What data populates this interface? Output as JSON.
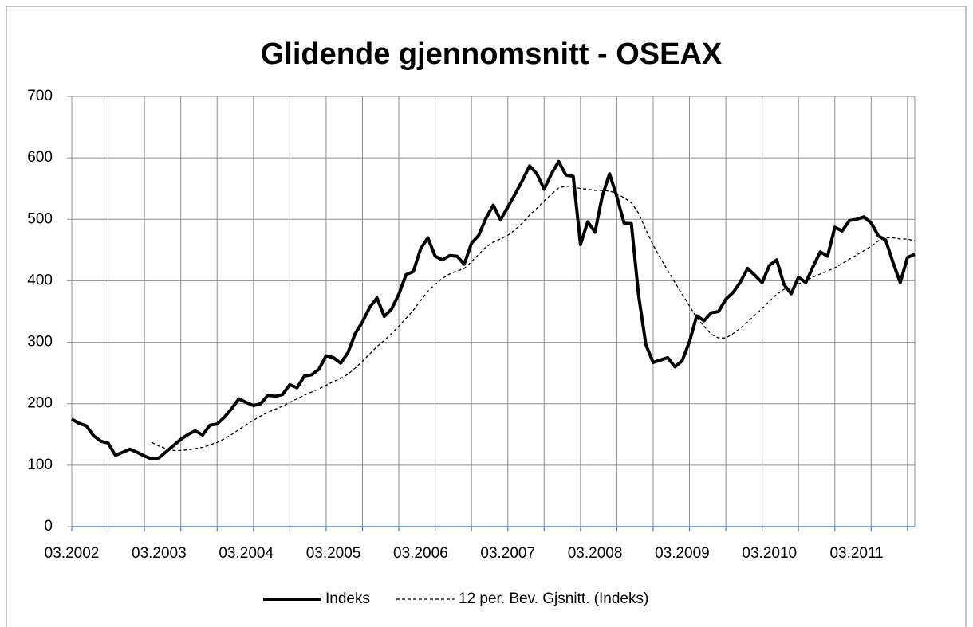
{
  "chart_data": {
    "type": "line",
    "title": "Glidende gjennomsnitt - OSEAX",
    "categories": [
      "03.2002",
      null,
      null,
      null,
      null,
      null,
      null,
      null,
      null,
      null,
      null,
      null,
      "03.2003",
      null,
      null,
      null,
      null,
      null,
      null,
      null,
      null,
      null,
      null,
      null,
      "03.2004",
      null,
      null,
      null,
      null,
      null,
      null,
      null,
      null,
      null,
      null,
      null,
      "03.2005",
      null,
      null,
      null,
      null,
      null,
      null,
      null,
      null,
      null,
      null,
      null,
      "03.2006",
      null,
      null,
      null,
      null,
      null,
      null,
      null,
      null,
      null,
      null,
      null,
      "03.2007",
      null,
      null,
      null,
      null,
      null,
      null,
      null,
      null,
      null,
      null,
      null,
      "03.2008",
      null,
      null,
      null,
      null,
      null,
      null,
      null,
      null,
      null,
      null,
      null,
      "03.2009",
      null,
      null,
      null,
      null,
      null,
      null,
      null,
      null,
      null,
      null,
      null,
      "03.2010",
      null,
      null,
      null,
      null,
      null,
      null,
      null,
      null,
      null,
      null,
      null,
      "03.2011",
      null,
      null,
      null,
      null,
      null,
      null,
      null,
      null
    ],
    "series": [
      {
        "name": "Indeks",
        "color": "#000000",
        "style": "solid",
        "values": [
          175,
          168,
          164,
          148,
          139,
          136,
          116,
          121,
          126,
          121,
          115,
          110,
          112,
          122,
          132,
          142,
          150,
          156,
          149,
          165,
          167,
          178,
          192,
          208,
          202,
          197,
          200,
          214,
          212,
          215,
          231,
          226,
          245,
          247,
          256,
          278,
          275,
          266,
          283,
          314,
          333,
          357,
          372,
          342,
          354,
          378,
          410,
          415,
          452,
          470,
          440,
          434,
          441,
          440,
          427,
          461,
          474,
          502,
          523,
          499,
          520,
          541,
          563,
          587,
          574,
          549,
          574,
          594,
          572,
          570,
          459,
          496,
          479,
          538,
          574,
          537,
          494,
          493,
          376,
          296,
          267,
          271,
          275,
          260,
          270,
          301,
          343,
          335,
          348,
          350,
          370,
          381,
          398,
          420,
          409,
          397,
          425,
          434,
          394,
          379,
          406,
          397,
          423,
          447,
          440,
          487,
          481,
          498,
          500,
          504,
          494,
          473,
          466,
          430,
          397,
          438,
          443
        ]
      },
      {
        "name": "12 per. Bev. Gjsnitt. (Indeks)",
        "color": "#000000",
        "style": "dashed",
        "values": [
          null,
          null,
          null,
          null,
          null,
          null,
          null,
          null,
          null,
          null,
          null,
          137,
          131,
          127,
          124,
          124,
          125,
          127,
          129,
          133,
          137,
          143,
          150,
          158,
          166,
          173,
          180,
          186,
          191,
          196,
          202,
          208,
          214,
          219,
          224,
          230,
          236,
          241,
          248,
          258,
          269,
          281,
          293,
          303,
          314,
          326,
          339,
          352,
          368,
          383,
          394,
          404,
          411,
          416,
          420,
          431,
          443,
          455,
          463,
          468,
          474,
          483,
          494,
          507,
          518,
          530,
          541,
          551,
          554,
          553,
          550,
          549,
          547,
          547,
          546,
          542,
          535,
          527,
          510,
          483,
          458,
          437,
          417,
          397,
          378,
          359,
          340,
          326,
          313,
          307,
          307,
          314,
          323,
          333,
          344,
          355,
          367,
          378,
          386,
          389,
          395,
          400,
          406,
          411,
          416,
          421,
          428,
          435,
          442,
          449,
          456,
          465,
          470,
          470,
          468,
          468,
          465
        ]
      }
    ],
    "ylim": [
      0,
      700
    ],
    "yticks": [
      0,
      100,
      200,
      300,
      400,
      500,
      600,
      700
    ],
    "grid": true,
    "legend": "bottom"
  }
}
